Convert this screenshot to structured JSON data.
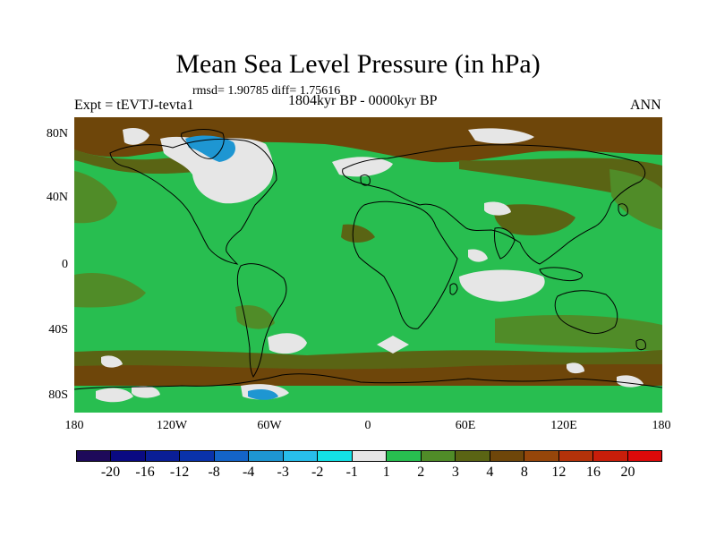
{
  "title": "Mean Sea Level Pressure (in hPa)",
  "stats": "rmsd= 1.90785  diff= 1.75616",
  "period": "1804kyr BP - 0000kyr BP",
  "experiment": "Expt = tEVTJ-tevta1",
  "season": "ANN",
  "axes": {
    "y_ticks": [
      "80N",
      "40N",
      "0",
      "40S",
      "80S"
    ],
    "x_ticks": [
      "180",
      "120W",
      "60W",
      "0",
      "60E",
      "120E",
      "180"
    ]
  },
  "colorbar": {
    "labels": [
      "-20",
      "-16",
      "-12",
      "-8",
      "-4",
      "-3",
      "-2",
      "-1",
      "1",
      "2",
      "3",
      "4",
      "8",
      "12",
      "16",
      "20"
    ],
    "colors": [
      "#1e0a5a",
      "#0a0a82",
      "#0a1e96",
      "#0a32aa",
      "#1464c8",
      "#1e96d2",
      "#28beeb",
      "#14e1e6",
      "#e6e6e6",
      "#28be50",
      "#508c28",
      "#5a6414",
      "#6e460a",
      "#96460a",
      "#b4320a",
      "#c81e0a",
      "#dc0a0a"
    ]
  },
  "palette": {
    "white": "#e6e6e6",
    "green": "#28be50",
    "darkgreen": "#508c28",
    "olive": "#5a6414",
    "brown": "#6e460a",
    "cyan": "#1e96d2"
  }
}
